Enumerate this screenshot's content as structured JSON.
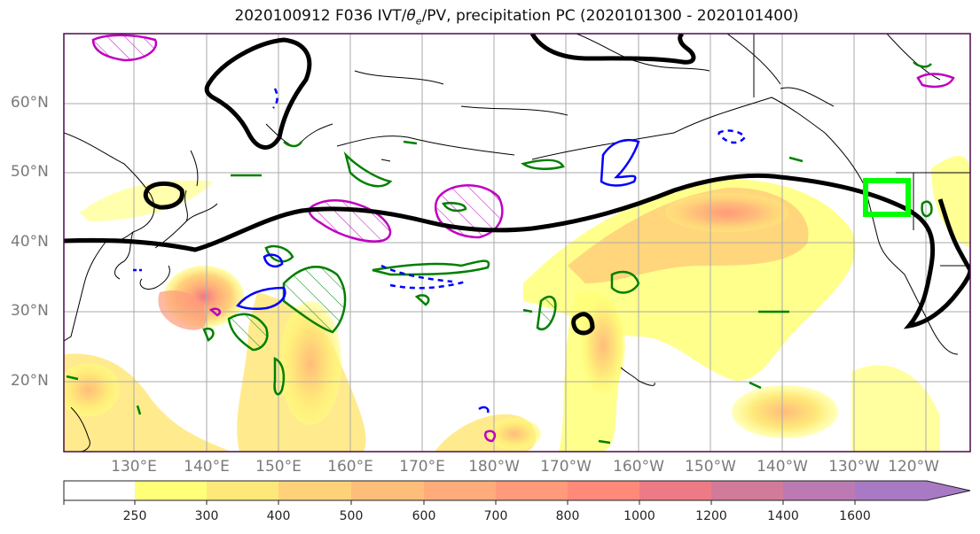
{
  "title": {
    "prefix": "2020100912 F036 IVT/",
    "theta": "θ",
    "theta_sub": "e",
    "suffix": "/PV, precipitation PC (2020101300 - 2020101400)"
  },
  "latitude_labels": [
    "60°N",
    "50°N",
    "40°N",
    "30°N",
    "20°N"
  ],
  "longitude_labels": [
    "130°E",
    "140°E",
    "150°E",
    "160°E",
    "170°E",
    "180°W",
    "170°W",
    "160°W",
    "150°W",
    "140°W",
    "130°W",
    "120°W"
  ],
  "colorbar": {
    "ticks": [
      "250",
      "300",
      "400",
      "500",
      "600",
      "700",
      "800",
      "1000",
      "1200",
      "1400",
      "1600"
    ],
    "colors": [
      "#ffffff",
      "#ffff78",
      "#ffe87a",
      "#ffd27a",
      "#ffbd7a",
      "#ffac7a",
      "#ff9a7a",
      "#ff8a7a",
      "#ee7a86",
      "#d27a9a",
      "#bb7ab2",
      "#a87ac4"
    ]
  },
  "map": {
    "extent": {
      "lon_min": 120,
      "lon_max": 250,
      "lat_min": 10,
      "lat_max": 70
    },
    "gridline_color": "#aaaaaa",
    "frame_color": "#4b0b4b",
    "ivt_contour_color": "#000000",
    "positive_pv_color": "#0000ff",
    "negative_pv_color": "#c000c0",
    "theta_e_color": "#008000",
    "highlight_box_color": "#00ff00"
  }
}
